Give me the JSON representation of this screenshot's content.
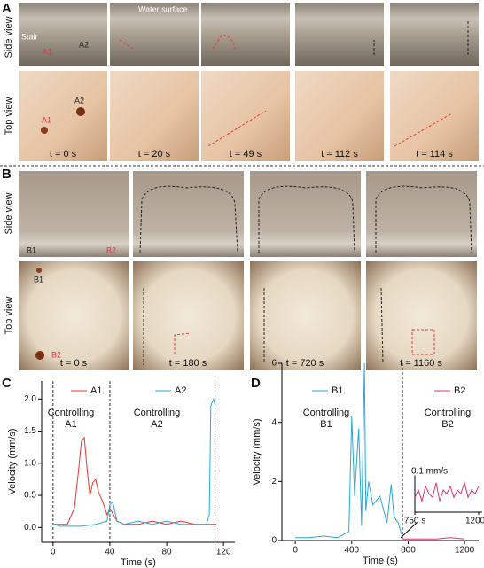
{
  "panels": {
    "A": {
      "letter": "A",
      "side_label": "Side view",
      "top_label": "Top view",
      "water_surface": "Water surface",
      "stair": "Stair",
      "side_a1": "A1",
      "side_a2": "A2",
      "top_a1": "A1",
      "top_a2": "A2",
      "times": [
        "t = 0 s",
        "t = 20 s",
        "t = 49 s",
        "t = 112 s",
        "t = 114 s"
      ]
    },
    "B": {
      "letter": "B",
      "side_label": "Side view",
      "top_label": "Top view",
      "side_b1": "B1",
      "side_b2": "B2",
      "top_b1": "B1",
      "top_b2": "B2",
      "times": [
        "t = 0 s",
        "t = 180 s",
        "t = 720 s",
        "t = 1160 s"
      ]
    }
  },
  "chart_data": [
    {
      "type": "line",
      "letter": "C",
      "xlabel": "Time (s)",
      "ylabel": "Velocity (mm/s)",
      "xlim": [
        -8,
        128
      ],
      "ylim": [
        -0.23,
        2.28
      ],
      "xticks": [
        0,
        40,
        80,
        120
      ],
      "yticks": [
        {
          "value": 0,
          "label": "0.0"
        },
        0.5,
        {
          "value": 1,
          "label": "1.0"
        },
        1.5,
        {
          "value": 2,
          "label": "2.0"
        }
      ],
      "event_lines": [
        0,
        40,
        114
      ],
      "series": [
        {
          "name": "A1",
          "color": "#e8352c",
          "x": [
            0,
            10,
            15,
            18,
            20,
            22,
            24,
            26,
            28,
            30,
            32,
            35,
            38,
            40,
            45,
            50,
            60,
            70,
            80,
            90,
            100,
            110,
            115
          ],
          "values": [
            0.05,
            0.05,
            0.3,
            0.9,
            1.35,
            1.4,
            0.9,
            0.5,
            0.7,
            0.75,
            0.55,
            0.4,
            0.2,
            0.3,
            0.1,
            0.05,
            0.05,
            0.1,
            0.05,
            0.1,
            0.05,
            0.05,
            0.05
          ]
        },
        {
          "name": "A2",
          "color": "#2aa8dc",
          "x": [
            0,
            5,
            20,
            30,
            38,
            40,
            42,
            45,
            50,
            60,
            70,
            80,
            90,
            100,
            108,
            110,
            111,
            113,
            114
          ],
          "values": [
            0.05,
            0.02,
            0.02,
            0.05,
            0.1,
            0.35,
            0.4,
            0.1,
            0.05,
            0.1,
            0.05,
            0.1,
            0.05,
            0.05,
            0.05,
            0.2,
            1.9,
            2.0,
            1.9
          ]
        }
      ],
      "annotations": [
        [
          "Controlling",
          "A1"
        ],
        [
          "Controlling",
          "A2"
        ]
      ]
    },
    {
      "type": "line",
      "letter": "D",
      "xlabel": "Time (s)",
      "ylabel": "Velocity (mm/s)",
      "xlim": [
        -95,
        1300
      ],
      "ylim": [
        0,
        6
      ],
      "xticks": [
        0,
        400,
        800,
        1200
      ],
      "yticks": [
        0,
        2,
        4,
        6
      ],
      "event_lines": [
        760
      ],
      "series": [
        {
          "name": "B1",
          "color": "#2aa8dc",
          "x": [
            0,
            100,
            200,
            300,
            380,
            400,
            420,
            450,
            470,
            490,
            500,
            520,
            550,
            600,
            650,
            680,
            700,
            730,
            760
          ],
          "values": [
            0.1,
            0.1,
            0.15,
            0.1,
            0.3,
            4.2,
            1.5,
            3.8,
            0.5,
            6.0,
            1.0,
            2.0,
            1.2,
            1.5,
            0.6,
            1.9,
            0.8,
            0.6,
            0.1
          ]
        },
        {
          "name": "B2",
          "color": "#e0307a",
          "x": [
            760,
            900,
            1000,
            1100,
            1200
          ],
          "values": [
            0.05,
            0.05,
            0.05,
            0.1,
            0.05
          ]
        }
      ],
      "annotations": [
        [
          "Controlling",
          "B1"
        ],
        [
          "Controlling",
          "B2"
        ]
      ],
      "inset": {
        "xlim": [
          750,
          1200
        ],
        "ylim": [
          0,
          0.12
        ],
        "xticks": [
          {
            "value": 750,
            "label": "750 s"
          },
          {
            "value": 1200,
            "label": "1200 s"
          }
        ],
        "scale_bar": {
          "value": 0.1,
          "label": "0.1 mm/s"
        },
        "x": [
          750,
          775,
          800,
          825,
          850,
          875,
          900,
          925,
          950,
          975,
          1000,
          1025,
          1050,
          1075,
          1100,
          1125,
          1150,
          1175,
          1200
        ],
        "values": [
          0.04,
          0.06,
          0.03,
          0.07,
          0.05,
          0.04,
          0.08,
          0.03,
          0.06,
          0.05,
          0.07,
          0.04,
          0.06,
          0.05,
          0.08,
          0.04,
          0.06,
          0.05,
          0.07
        ]
      }
    }
  ]
}
